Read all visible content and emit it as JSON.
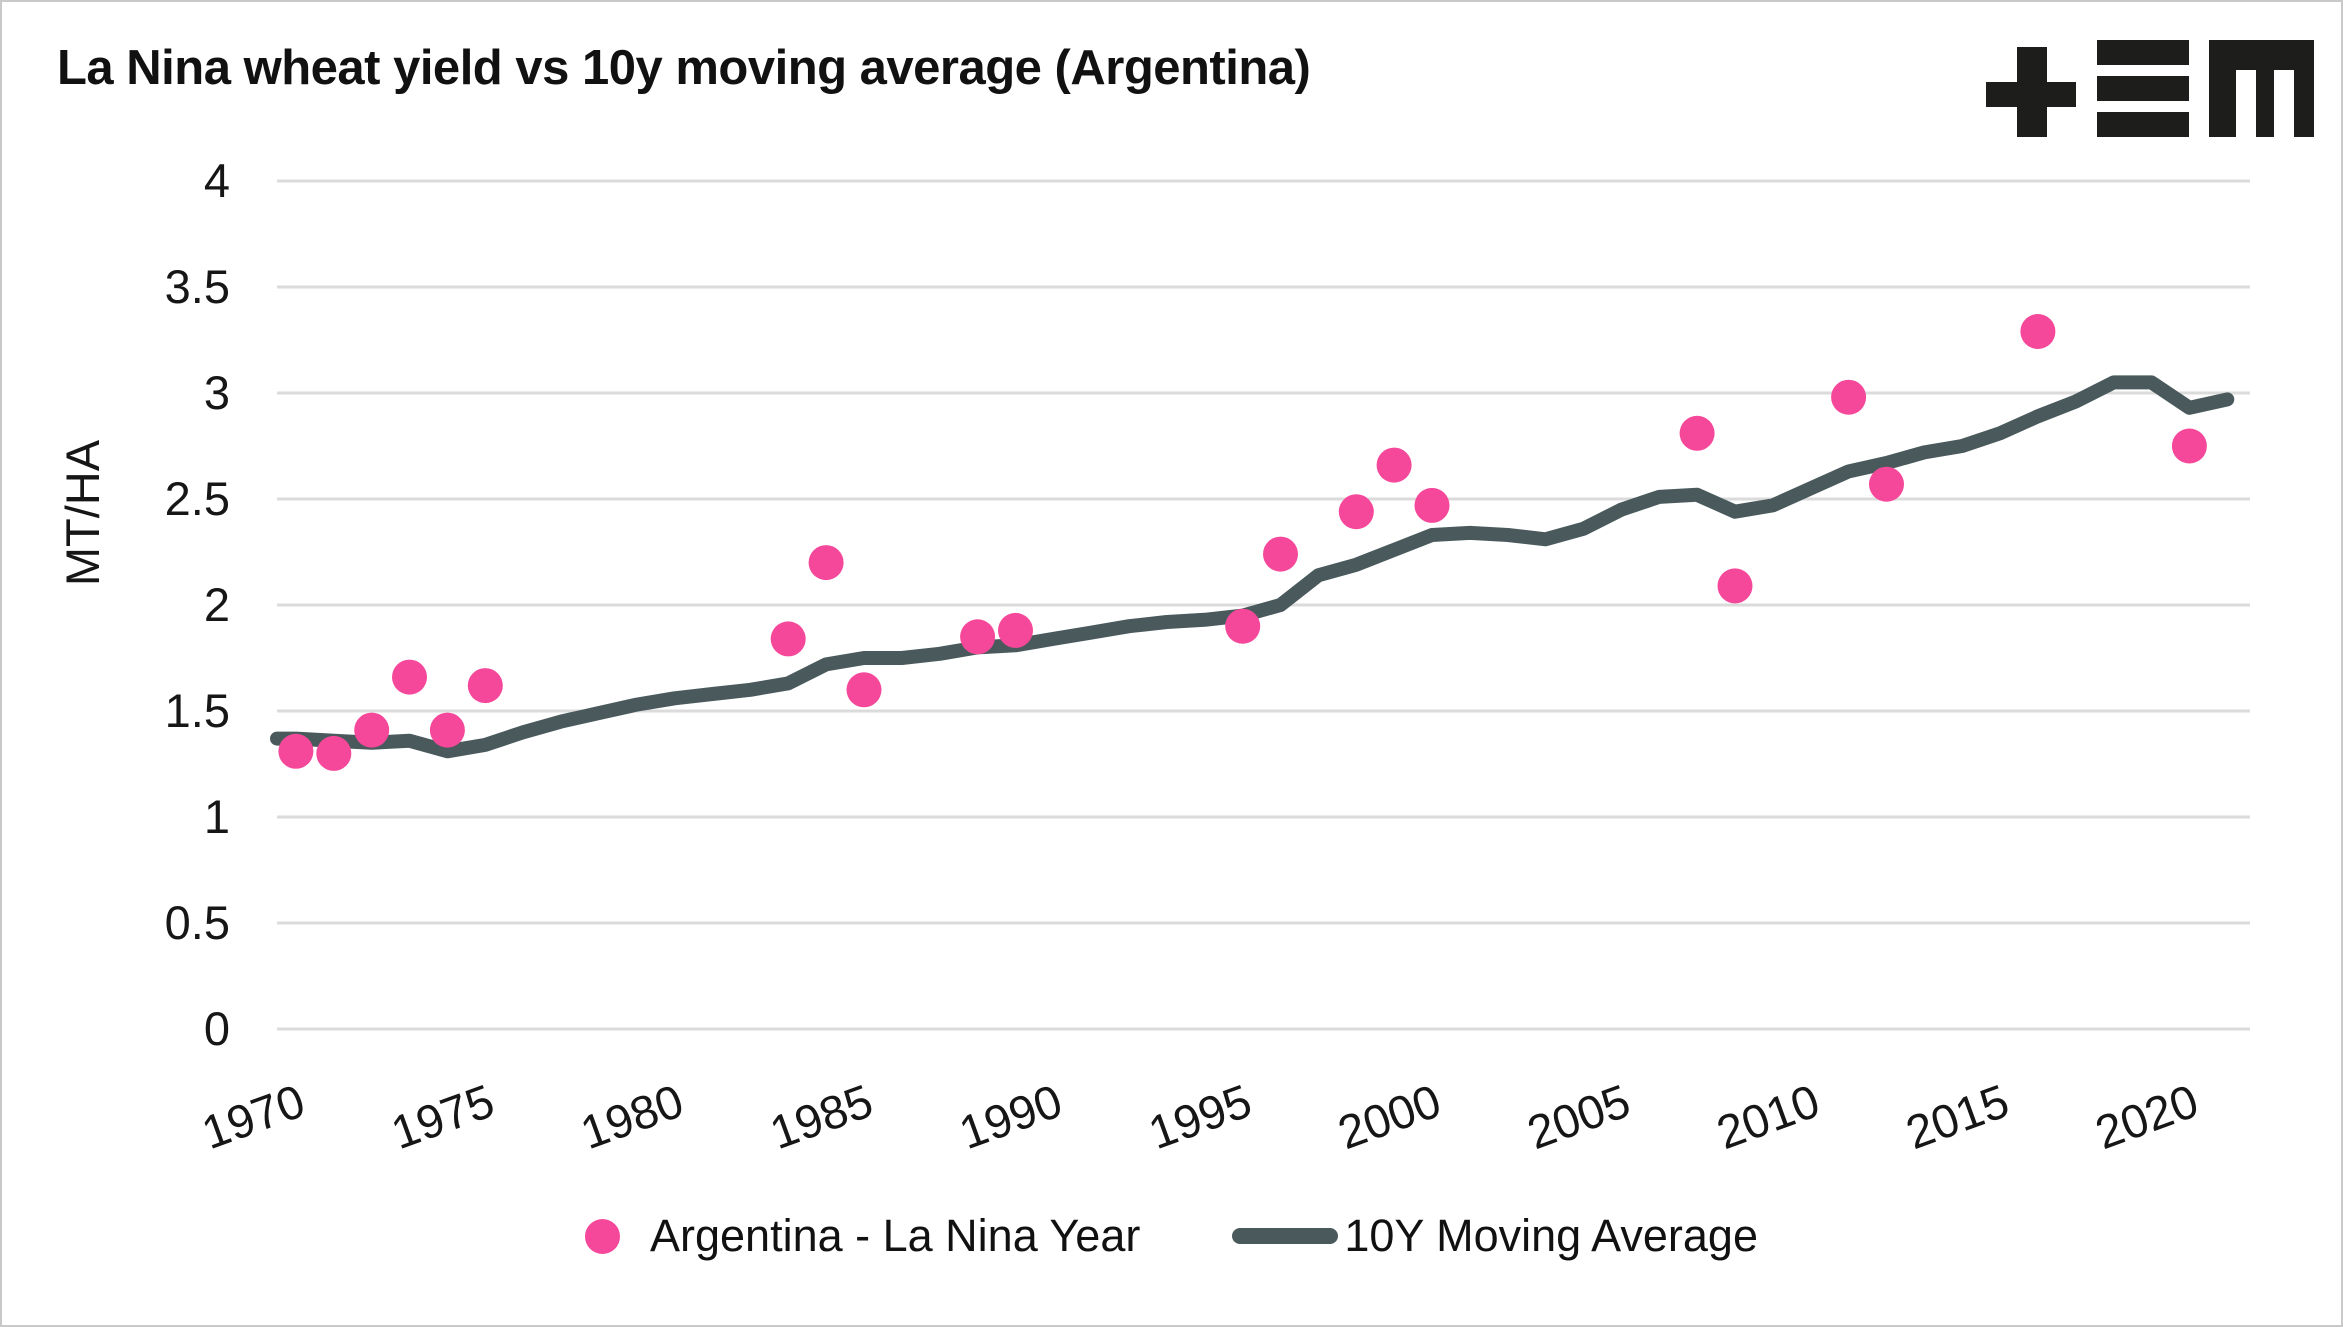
{
  "header": {
    "title": "La Nina wheat yield vs 10y moving average (Argentina)"
  },
  "chart_data": {
    "type": "scatter",
    "title": "La Nina wheat yield vs 10y moving average (Argentina)",
    "xlabel": "",
    "ylabel": "MT/HA",
    "xlim": [
      1969.5,
      2021.6
    ],
    "ylim": [
      0,
      4
    ],
    "x_ticks": [
      1970,
      1975,
      1980,
      1985,
      1990,
      1995,
      2000,
      2005,
      2010,
      2015,
      2020
    ],
    "y_ticks": [
      0,
      0.5,
      1,
      1.5,
      2,
      2.5,
      3,
      3.5,
      4
    ],
    "grid": "horizontal-only",
    "legend_position": "bottom-center",
    "series": [
      {
        "name": "Argentina - La Nina Year",
        "type": "scatter",
        "color": "#F6489A",
        "points": [
          [
            1970,
            1.31
          ],
          [
            1971,
            1.3
          ],
          [
            1972,
            1.41
          ],
          [
            1973,
            1.66
          ],
          [
            1974,
            1.41
          ],
          [
            1975,
            1.62
          ],
          [
            1983,
            1.84
          ],
          [
            1984,
            2.2
          ],
          [
            1985,
            1.6
          ],
          [
            1988,
            1.85
          ],
          [
            1989,
            1.88
          ],
          [
            1995,
            1.9
          ],
          [
            1996,
            2.24
          ],
          [
            1998,
            2.44
          ],
          [
            1999,
            2.66
          ],
          [
            2000,
            2.47
          ],
          [
            2007,
            2.81
          ],
          [
            2008,
            2.09
          ],
          [
            2011,
            2.98
          ],
          [
            2012,
            2.57
          ],
          [
            2016,
            3.29
          ],
          [
            2020,
            2.75
          ]
        ]
      },
      {
        "name": "10Y Moving Average",
        "type": "line",
        "color": "#4A5A5C",
        "points": [
          [
            1969.5,
            1.37
          ],
          [
            1970,
            1.37
          ],
          [
            1971,
            1.36
          ],
          [
            1972,
            1.35
          ],
          [
            1973,
            1.36
          ],
          [
            1974,
            1.31
          ],
          [
            1975,
            1.34
          ],
          [
            1976,
            1.4
          ],
          [
            1977,
            1.45
          ],
          [
            1978,
            1.49
          ],
          [
            1979,
            1.53
          ],
          [
            1980,
            1.56
          ],
          [
            1981,
            1.58
          ],
          [
            1982,
            1.6
          ],
          [
            1983,
            1.63
          ],
          [
            1984,
            1.72
          ],
          [
            1985,
            1.75
          ],
          [
            1986,
            1.75
          ],
          [
            1987,
            1.77
          ],
          [
            1988,
            1.8
          ],
          [
            1989,
            1.81
          ],
          [
            1990,
            1.84
          ],
          [
            1991,
            1.87
          ],
          [
            1992,
            1.9
          ],
          [
            1993,
            1.92
          ],
          [
            1994,
            1.93
          ],
          [
            1995,
            1.95
          ],
          [
            1996,
            2.0
          ],
          [
            1997,
            2.14
          ],
          [
            1998,
            2.19
          ],
          [
            1999,
            2.26
          ],
          [
            2000,
            2.33
          ],
          [
            2001,
            2.34
          ],
          [
            2002,
            2.33
          ],
          [
            2003,
            2.31
          ],
          [
            2004,
            2.36
          ],
          [
            2005,
            2.45
          ],
          [
            2006,
            2.51
          ],
          [
            2007,
            2.52
          ],
          [
            2008,
            2.44
          ],
          [
            2009,
            2.47
          ],
          [
            2010,
            2.55
          ],
          [
            2011,
            2.63
          ],
          [
            2012,
            2.67
          ],
          [
            2013,
            2.72
          ],
          [
            2014,
            2.75
          ],
          [
            2015,
            2.81
          ],
          [
            2016,
            2.89
          ],
          [
            2017,
            2.96
          ],
          [
            2018,
            3.05
          ],
          [
            2019,
            3.05
          ],
          [
            2020,
            2.93
          ],
          [
            2021,
            2.97
          ]
        ]
      }
    ],
    "colors": {
      "grid": "#DBDBDB",
      "text": "#161616",
      "background": "#FFFFFF",
      "border": "#C9C9C9"
    }
  }
}
